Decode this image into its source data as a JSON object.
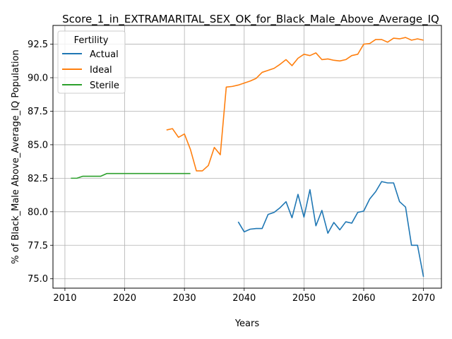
{
  "chart_data": {
    "type": "line",
    "title": "Score_1_in_EXTRAMARITAL_SEX_OK_for_Black_Male_Above_Average_IQ",
    "xlabel": "Years",
    "ylabel": "% of Black_Male Above_Average_IQ Population",
    "xlim": [
      2008,
      2073
    ],
    "ylim": [
      74.3,
      93.9
    ],
    "xticks": [
      2010,
      2020,
      2030,
      2040,
      2050,
      2060,
      2070
    ],
    "yticks": [
      75.0,
      77.5,
      80.0,
      82.5,
      85.0,
      87.5,
      90.0,
      92.5
    ],
    "xtick_labels": [
      "2010",
      "2020",
      "2030",
      "2040",
      "2050",
      "2060",
      "2070"
    ],
    "ytick_labels": [
      "75.0",
      "77.5",
      "80.0",
      "82.5",
      "85.0",
      "87.5",
      "90.0",
      "92.5"
    ],
    "grid": true,
    "legend": {
      "title": "Fertility",
      "placement": "top-left"
    },
    "series": [
      {
        "name": "Actual",
        "color": "#1f77b4",
        "x": [
          2039,
          2040,
          2041,
          2042,
          2043,
          2044,
          2045,
          2046,
          2047,
          2048,
          2049,
          2050,
          2051,
          2052,
          2053,
          2054,
          2055,
          2056,
          2057,
          2058,
          2059,
          2060,
          2061,
          2062,
          2063,
          2064,
          2065,
          2066,
          2067,
          2068,
          2069,
          2070
        ],
        "y": [
          79.25,
          78.5,
          78.7,
          78.75,
          78.75,
          79.8,
          79.95,
          80.3,
          80.75,
          79.55,
          81.3,
          79.6,
          81.65,
          78.95,
          80.1,
          78.4,
          79.2,
          78.65,
          79.25,
          79.15,
          79.95,
          80.05,
          80.95,
          81.5,
          82.25,
          82.15,
          82.15,
          80.75,
          80.35,
          77.5,
          77.5,
          75.15
        ]
      },
      {
        "name": "Ideal",
        "color": "#ff7f0e",
        "x": [
          2027,
          2028,
          2029,
          2030,
          2031,
          2032,
          2033,
          2034,
          2035,
          2036,
          2037,
          2038,
          2039,
          2040,
          2041,
          2042,
          2043,
          2044,
          2045,
          2046,
          2047,
          2048,
          2049,
          2050,
          2051,
          2052,
          2053,
          2054,
          2055,
          2056,
          2057,
          2058,
          2059,
          2060,
          2061,
          2062,
          2063,
          2064,
          2065,
          2066,
          2067,
          2068,
          2069,
          2070
        ],
        "y": [
          86.1,
          86.2,
          85.55,
          85.8,
          84.65,
          83.05,
          83.05,
          83.45,
          84.8,
          84.25,
          89.3,
          89.35,
          89.45,
          89.6,
          89.75,
          89.95,
          90.4,
          90.55,
          90.7,
          91.0,
          91.35,
          90.9,
          91.45,
          91.75,
          91.65,
          91.85,
          91.35,
          91.4,
          91.3,
          91.25,
          91.35,
          91.65,
          91.75,
          92.5,
          92.55,
          92.85,
          92.85,
          92.65,
          92.95,
          92.9,
          93.0,
          92.8,
          92.9,
          92.8
        ]
      },
      {
        "name": "Sterile",
        "color": "#2ca02c",
        "x": [
          2011,
          2012,
          2013,
          2014,
          2015,
          2016,
          2017,
          2018,
          2019,
          2020,
          2021,
          2022,
          2023,
          2024,
          2025,
          2026,
          2027,
          2028,
          2029,
          2030,
          2031
        ],
        "y": [
          82.5,
          82.5,
          82.65,
          82.65,
          82.65,
          82.65,
          82.85,
          82.85,
          82.85,
          82.85,
          82.85,
          82.85,
          82.85,
          82.85,
          82.85,
          82.85,
          82.85,
          82.85,
          82.85,
          82.85,
          82.85
        ]
      }
    ]
  }
}
